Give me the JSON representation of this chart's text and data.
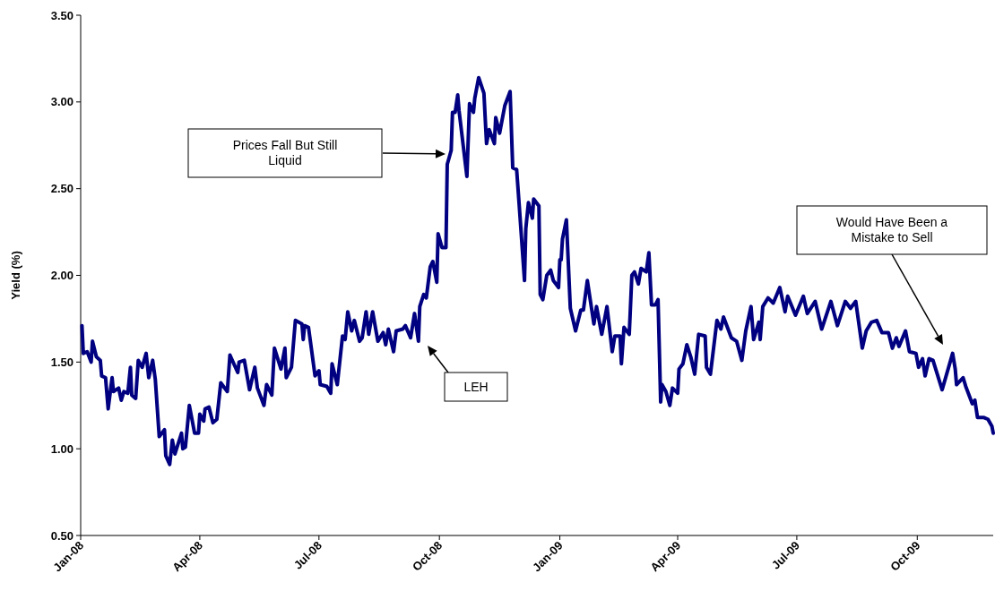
{
  "chart_data": {
    "type": "line",
    "ylabel": "Yield (%)",
    "xlim": [
      "2008-01-01",
      "2009-11-28"
    ],
    "xticks": [
      {
        "value": "2008-01-01",
        "label": "Jan-08"
      },
      {
        "value": "2008-04-01",
        "label": "Apr-08"
      },
      {
        "value": "2008-07-01",
        "label": "Jul-08"
      },
      {
        "value": "2008-10-01",
        "label": "Oct-08"
      },
      {
        "value": "2009-01-01",
        "label": "Jan-09"
      },
      {
        "value": "2009-04-01",
        "label": "Apr-09"
      },
      {
        "value": "2009-07-01",
        "label": "Jul-09"
      },
      {
        "value": "2009-10-01",
        "label": "Oct-09"
      }
    ],
    "ylim": [
      0.5,
      3.5
    ],
    "yticks": [
      {
        "value": 0.5,
        "label": "0.50"
      },
      {
        "value": 1,
        "label": "1.00"
      },
      {
        "value": 1.5,
        "label": "1.50"
      },
      {
        "value": 2,
        "label": "2.00"
      },
      {
        "value": 2.5,
        "label": "2.50"
      },
      {
        "value": 3,
        "label": "3.00"
      },
      {
        "value": 3.5,
        "label": "3.50"
      }
    ],
    "grid": false,
    "marker": "none",
    "line_style": "solid",
    "annotations": [
      "Prices Fall But Still Liquid",
      "LEH",
      "Would Have Been a Mistake to Sell"
    ],
    "series": [
      {
        "color": "#000080",
        "x": [
          "2008-01-02",
          "2008-01-03",
          "2008-01-06",
          "2008-01-09",
          "2008-01-10",
          "2008-01-13",
          "2008-01-16",
          "2008-01-17",
          "2008-01-20",
          "2008-01-22",
          "2008-01-25",
          "2008-01-26",
          "2008-01-30",
          "2008-02-01",
          "2008-02-03",
          "2008-02-06",
          "2008-02-08",
          "2008-02-09",
          "2008-02-12",
          "2008-02-14",
          "2008-02-17",
          "2008-02-20",
          "2008-02-22",
          "2008-02-25",
          "2008-02-27",
          "2008-03-01",
          "2008-03-05",
          "2008-03-06",
          "2008-03-09",
          "2008-03-11",
          "2008-03-13",
          "2008-03-18",
          "2008-03-19",
          "2008-03-21",
          "2008-03-24",
          "2008-03-28",
          "2008-03-31",
          "2008-04-01",
          "2008-04-04",
          "2008-04-05",
          "2008-04-08",
          "2008-04-11",
          "2008-04-14",
          "2008-04-17",
          "2008-04-22",
          "2008-04-24",
          "2008-04-30",
          "2008-05-01",
          "2008-05-05",
          "2008-05-09",
          "2008-05-13",
          "2008-05-15",
          "2008-05-20",
          "2008-05-22",
          "2008-05-26",
          "2008-05-28",
          "2008-06-02",
          "2008-06-05",
          "2008-06-06",
          "2008-06-10",
          "2008-06-13",
          "2008-06-18",
          "2008-06-19",
          "2008-06-20",
          "2008-06-23",
          "2008-06-25",
          "2008-06-28",
          "2008-07-01",
          "2008-07-02",
          "2008-07-07",
          "2008-07-10",
          "2008-07-11",
          "2008-07-15",
          "2008-07-19",
          "2008-07-21",
          "2008-07-23",
          "2008-07-26",
          "2008-07-28",
          "2008-08-01",
          "2008-08-03",
          "2008-08-06",
          "2008-08-08",
          "2008-08-11",
          "2008-08-15",
          "2008-08-19",
          "2008-08-21",
          "2008-08-23",
          "2008-08-27",
          "2008-08-29",
          "2008-09-03",
          "2008-09-05",
          "2008-09-09",
          "2008-09-12",
          "2008-09-15",
          "2008-09-16",
          "2008-09-19",
          "2008-09-21",
          "2008-09-24",
          "2008-09-26",
          "2008-09-29",
          "2008-09-30",
          "2008-10-03",
          "2008-10-06",
          "2008-10-07",
          "2008-10-10",
          "2008-10-11",
          "2008-10-13",
          "2008-10-15",
          "2008-10-16",
          "2008-10-22",
          "2008-10-24",
          "2008-10-27",
          "2008-10-28",
          "2008-10-31",
          "2008-11-04",
          "2008-11-06",
          "2008-11-08",
          "2008-11-12",
          "2008-11-13",
          "2008-11-16",
          "2008-11-20",
          "2008-11-24",
          "2008-11-26",
          "2008-11-29",
          "2008-12-01",
          "2008-12-05",
          "2008-12-06",
          "2008-12-08",
          "2008-12-11",
          "2008-12-12",
          "2008-12-16",
          "2008-12-17",
          "2008-12-19",
          "2008-12-22",
          "2008-12-25",
          "2008-12-27",
          "2008-12-31",
          "2009-01-01",
          "2009-01-02",
          "2009-01-03",
          "2009-01-06",
          "2009-01-09",
          "2009-01-13",
          "2009-01-17",
          "2009-01-19",
          "2009-01-22",
          "2009-01-24",
          "2009-01-27",
          "2009-01-29",
          "2009-02-02",
          "2009-02-06",
          "2009-02-10",
          "2009-02-12",
          "2009-02-16",
          "2009-02-17",
          "2009-02-19",
          "2009-02-23",
          "2009-02-25",
          "2009-02-27",
          "2009-03-02",
          "2009-03-04",
          "2009-03-08",
          "2009-03-10",
          "2009-03-12",
          "2009-03-15",
          "2009-03-17",
          "2009-03-19",
          "2009-03-20",
          "2009-03-23",
          "2009-03-26",
          "2009-03-28",
          "2009-04-01",
          "2009-04-02",
          "2009-04-05",
          "2009-04-08",
          "2009-04-11",
          "2009-04-14",
          "2009-04-17",
          "2009-04-22",
          "2009-04-23",
          "2009-04-26",
          "2009-05-01",
          "2009-05-04",
          "2009-05-06",
          "2009-05-12",
          "2009-05-16",
          "2009-05-20",
          "2009-05-23",
          "2009-05-27",
          "2009-05-29",
          "2009-06-02",
          "2009-06-03",
          "2009-06-05",
          "2009-06-09",
          "2009-06-13",
          "2009-06-18",
          "2009-06-22",
          "2009-06-24",
          "2009-06-30",
          "2009-07-06",
          "2009-07-09",
          "2009-07-15",
          "2009-07-20",
          "2009-07-27",
          "2009-08-01",
          "2009-08-07",
          "2009-08-11",
          "2009-08-15",
          "2009-08-20",
          "2009-08-23",
          "2009-08-27",
          "2009-08-31",
          "2009-09-04",
          "2009-09-09",
          "2009-09-12",
          "2009-09-15",
          "2009-09-17",
          "2009-09-22",
          "2009-09-25",
          "2009-09-30",
          "2009-10-02",
          "2009-10-05",
          "2009-10-07",
          "2009-10-10",
          "2009-10-13",
          "2009-10-20",
          "2009-10-28",
          "2009-10-30",
          "2009-10-31",
          "2009-11-05",
          "2009-11-07",
          "2009-11-12",
          "2009-11-14",
          "2009-11-16",
          "2009-11-21",
          "2009-11-24",
          "2009-11-27",
          "2009-11-28"
        ],
        "values": [
          1.71,
          1.55,
          1.56,
          1.5,
          1.62,
          1.53,
          1.51,
          1.42,
          1.41,
          1.23,
          1.41,
          1.33,
          1.35,
          1.28,
          1.33,
          1.32,
          1.47,
          1.31,
          1.29,
          1.51,
          1.47,
          1.55,
          1.41,
          1.51,
          1.4,
          1.07,
          1.11,
          0.96,
          0.91,
          1.05,
          0.97,
          1.09,
          1.0,
          1.01,
          1.25,
          1.09,
          1.09,
          1.2,
          1.16,
          1.23,
          1.24,
          1.15,
          1.17,
          1.38,
          1.33,
          1.54,
          1.44,
          1.5,
          1.51,
          1.34,
          1.47,
          1.35,
          1.25,
          1.37,
          1.31,
          1.58,
          1.46,
          1.58,
          1.41,
          1.47,
          1.74,
          1.72,
          1.63,
          1.71,
          1.7,
          1.59,
          1.42,
          1.45,
          1.37,
          1.36,
          1.32,
          1.49,
          1.37,
          1.65,
          1.63,
          1.79,
          1.68,
          1.74,
          1.62,
          1.64,
          1.79,
          1.66,
          1.79,
          1.62,
          1.67,
          1.6,
          1.69,
          1.56,
          1.68,
          1.69,
          1.71,
          1.64,
          1.78,
          1.62,
          1.82,
          1.89,
          1.87,
          2.05,
          2.08,
          1.96,
          2.24,
          2.16,
          2.16,
          2.64,
          2.72,
          2.94,
          2.94,
          3.04,
          2.95,
          2.57,
          2.99,
          2.94,
          3.02,
          3.14,
          3.05,
          2.76,
          2.84,
          2.76,
          2.91,
          2.82,
          2.98,
          3.06,
          2.62,
          2.61,
          2.4,
          1.97,
          2.27,
          2.42,
          2.33,
          2.44,
          2.4,
          1.89,
          1.86,
          2.0,
          2.03,
          1.97,
          1.93,
          2.09,
          2.09,
          2.21,
          2.32,
          1.81,
          1.68,
          1.8,
          1.8,
          1.97,
          1.87,
          1.72,
          1.82,
          1.66,
          1.82,
          1.56,
          1.65,
          1.65,
          1.49,
          1.7,
          1.66,
          2.0,
          2.02,
          1.95,
          2.04,
          2.02,
          2.13,
          1.83,
          1.83,
          1.86,
          1.27,
          1.37,
          1.33,
          1.25,
          1.35,
          1.32,
          1.46,
          1.49,
          1.6,
          1.53,
          1.43,
          1.66,
          1.65,
          1.47,
          1.43,
          1.74,
          1.69,
          1.76,
          1.64,
          1.62,
          1.51,
          1.68,
          1.82,
          1.63,
          1.73,
          1.63,
          1.82,
          1.87,
          1.84,
          1.93,
          1.79,
          1.88,
          1.77,
          1.88,
          1.78,
          1.85,
          1.69,
          1.85,
          1.71,
          1.85,
          1.81,
          1.85,
          1.58,
          1.68,
          1.73,
          1.74,
          1.67,
          1.67,
          1.58,
          1.64,
          1.59,
          1.68,
          1.56,
          1.55,
          1.47,
          1.52,
          1.42,
          1.52,
          1.51,
          1.34,
          1.55,
          1.46,
          1.37,
          1.41,
          1.36,
          1.26,
          1.28,
          1.18,
          1.18,
          1.17,
          1.13,
          1.09
        ]
      }
    ]
  }
}
